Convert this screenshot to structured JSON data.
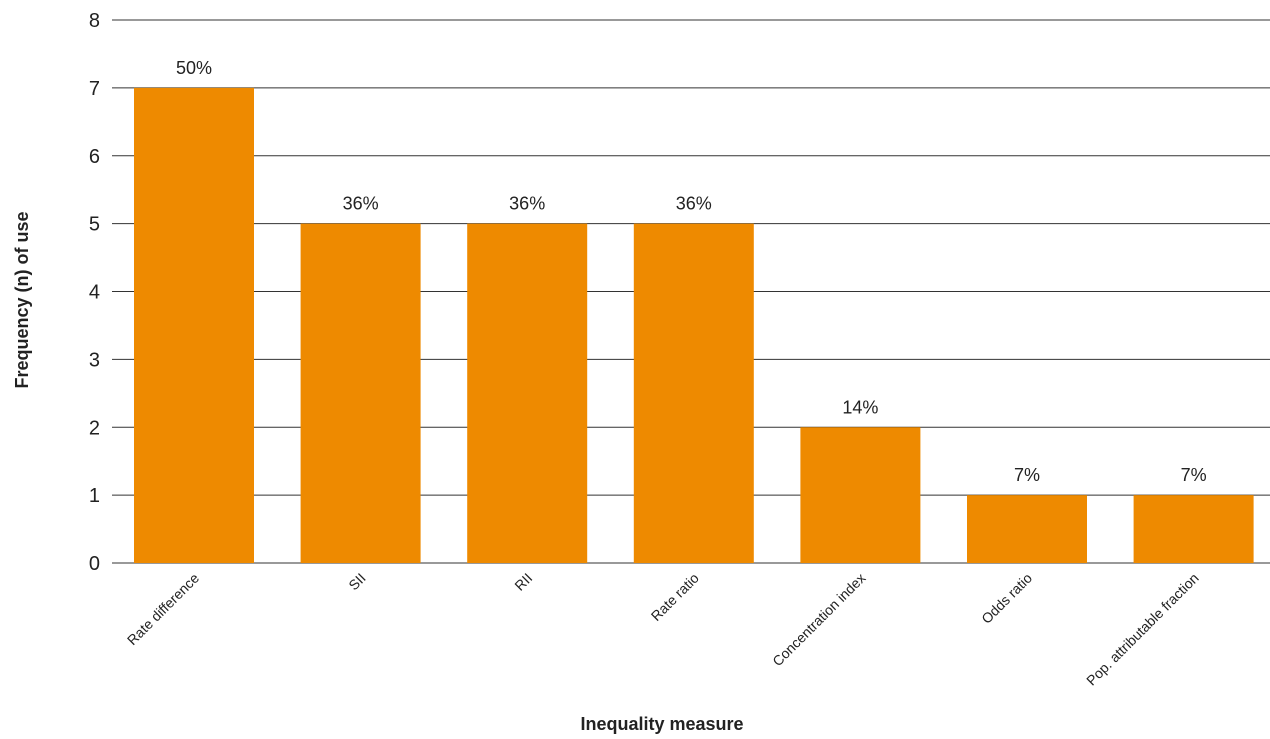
{
  "chart_data": {
    "type": "bar",
    "categories": [
      "Rate difference",
      "SII",
      "RII",
      "Rate ratio",
      "Concentration index",
      "Odds ratio",
      "Pop. attributable fraction"
    ],
    "values": [
      7,
      5,
      5,
      5,
      2,
      1,
      1
    ],
    "data_labels": [
      "50%",
      "36%",
      "36%",
      "36%",
      "14%",
      "7%",
      "7%"
    ],
    "xlabel": "Inequality measure",
    "ylabel": "Frequency (n) of use",
    "ylim": [
      0,
      8
    ],
    "yticks": [
      "0",
      "1",
      "2",
      "3",
      "4",
      "5",
      "6",
      "7",
      "8"
    ],
    "grid": true,
    "bar_color": "#EE8A00",
    "grid_color": "#333333"
  }
}
